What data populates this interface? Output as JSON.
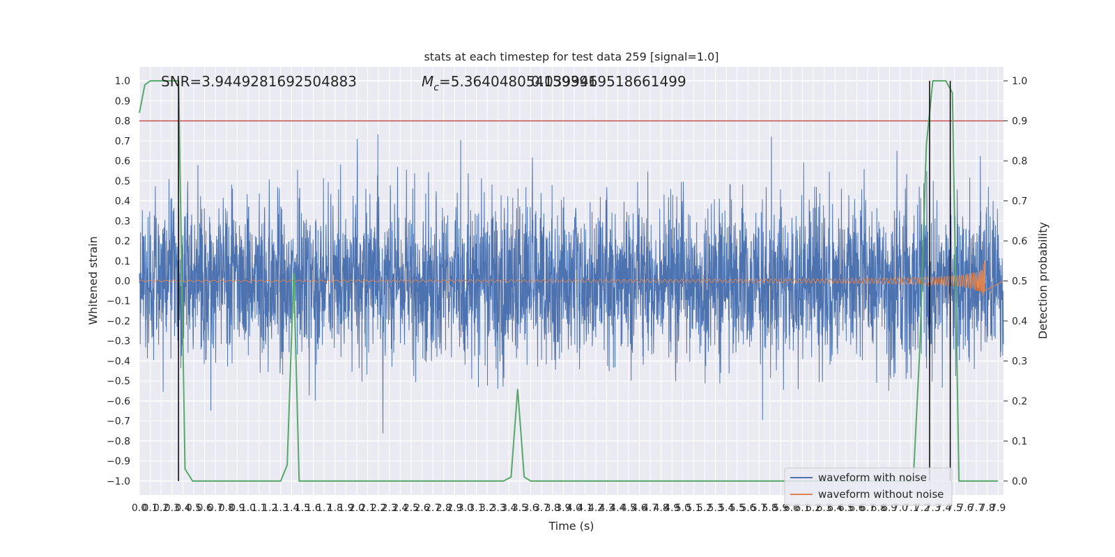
{
  "chart_data": {
    "type": "line",
    "title": "stats at each timestep for test data 259 [signal=1.0]",
    "xlabel": "Time (s)",
    "ylabel_left": "Whitened strain",
    "ylabel_right": "Detection probability",
    "xlim": [
      0.0,
      7.95
    ],
    "ylim_left": [
      -1.07,
      1.07
    ],
    "ylim_right": [
      -0.035,
      1.035
    ],
    "grid": true,
    "legend_placement": "lower-right",
    "x_ticks": [
      "0.0",
      "0.1",
      "0.2",
      "0.3",
      "0.4",
      "0.5",
      "0.6",
      "0.7",
      "0.8",
      "0.9",
      "1.0",
      "1.1",
      "1.2",
      "1.3",
      "1.4",
      "1.5",
      "1.6",
      "1.7",
      "1.8",
      "1.9",
      "2.0",
      "2.1",
      "2.2",
      "2.3",
      "2.4",
      "2.5",
      "2.6",
      "2.7",
      "2.8",
      "2.9",
      "3.0",
      "3.1",
      "3.2",
      "3.3",
      "3.4",
      "3.5",
      "3.6",
      "3.7",
      "3.8",
      "3.9",
      "4.0",
      "4.1",
      "4.2",
      "4.3",
      "4.4",
      "4.5",
      "4.6",
      "4.7",
      "4.8",
      "4.9",
      "5.0",
      "5.1",
      "5.2",
      "5.3",
      "5.4",
      "5.5",
      "5.6",
      "5.7",
      "5.8",
      "5.9",
      "6.0",
      "6.1",
      "6.2",
      "6.3",
      "6.4",
      "6.5",
      "6.6",
      "6.7",
      "6.8",
      "6.9",
      "7.0",
      "7.1",
      "7.2",
      "7.3",
      "7.4",
      "7.5",
      "7.6",
      "7.7",
      "7.8",
      "7.9"
    ],
    "y_ticks_left": [
      "−1.0",
      "−0.9",
      "−0.8",
      "−0.7",
      "−0.6",
      "−0.5",
      "−0.4",
      "−0.3",
      "−0.2",
      "−0.1",
      "0.0",
      "0.1",
      "0.2",
      "0.3",
      "0.4",
      "0.5",
      "0.6",
      "0.7",
      "0.8",
      "0.9",
      "1.0"
    ],
    "y_ticks_right": [
      "0.0",
      "0.1",
      "0.2",
      "0.3",
      "0.4",
      "0.5",
      "0.6",
      "0.7",
      "0.8",
      "0.9",
      "1.0"
    ],
    "annotations": {
      "snr": "SNR=3.9449281692504883",
      "mc_symbol": "M",
      "mc_sub": "c",
      "mc_value": "=5.364048054159391",
      "overlap_value": "0.0399469518661499"
    },
    "threshold": {
      "axis": "right",
      "value": 0.9,
      "color": "#c44e52"
    },
    "vertical_markers": [
      0.36,
      7.27,
      7.46
    ],
    "series": [
      {
        "name": "waveform with noise",
        "axis": "left",
        "color": "#4c72b0",
        "noise_sigma": 0.2
      },
      {
        "name": "waveform without noise",
        "axis": "left",
        "color": "#dd8452"
      },
      {
        "axis": "right",
        "color": "#55a868",
        "x": [
          0.0,
          0.05,
          0.1,
          0.15,
          0.2,
          0.25,
          0.3,
          0.36,
          0.42,
          0.49,
          0.55,
          0.6,
          0.7,
          0.8,
          0.9,
          1.0,
          1.1,
          1.2,
          1.3,
          1.24,
          1.3,
          1.36,
          1.42,
          1.47,
          1.55,
          1.6,
          1.7,
          1.8,
          1.9,
          2.0,
          2.2,
          2.4,
          2.6,
          2.8,
          3.0,
          3.2,
          3.35,
          3.42,
          3.48,
          3.54,
          3.6,
          3.7,
          3.9,
          4.1,
          4.3,
          4.5,
          4.7,
          4.9,
          5.1,
          5.3,
          5.5,
          5.7,
          5.9,
          6.1,
          6.3,
          6.5,
          6.7,
          6.9,
          7.05,
          7.12,
          7.18,
          7.24,
          7.3,
          7.36,
          7.42,
          7.48,
          7.54,
          7.6,
          7.7,
          7.8,
          7.9
        ],
        "values": [
          0.92,
          0.99,
          1.0,
          1.0,
          1.0,
          1.0,
          1.0,
          1.0,
          0.03,
          0.0,
          0.0,
          0.0,
          0.0,
          0.0,
          0.0,
          0.0,
          0.0,
          0.0,
          0.0,
          0.0,
          0.0,
          0.04,
          0.52,
          0.0,
          0.0,
          0.0,
          0.0,
          0.0,
          0.0,
          0.0,
          0.0,
          0.0,
          0.0,
          0.0,
          0.0,
          0.0,
          0.0,
          0.01,
          0.23,
          0.01,
          0.0,
          0.0,
          0.0,
          0.0,
          0.0,
          0.0,
          0.0,
          0.0,
          0.0,
          0.0,
          0.0,
          0.0,
          0.0,
          0.0,
          0.0,
          0.0,
          0.0,
          0.0,
          0.0,
          0.0,
          0.33,
          0.84,
          1.0,
          1.0,
          1.0,
          0.97,
          0.0,
          0.0,
          0.0,
          0.0,
          0.0
        ]
      }
    ]
  }
}
